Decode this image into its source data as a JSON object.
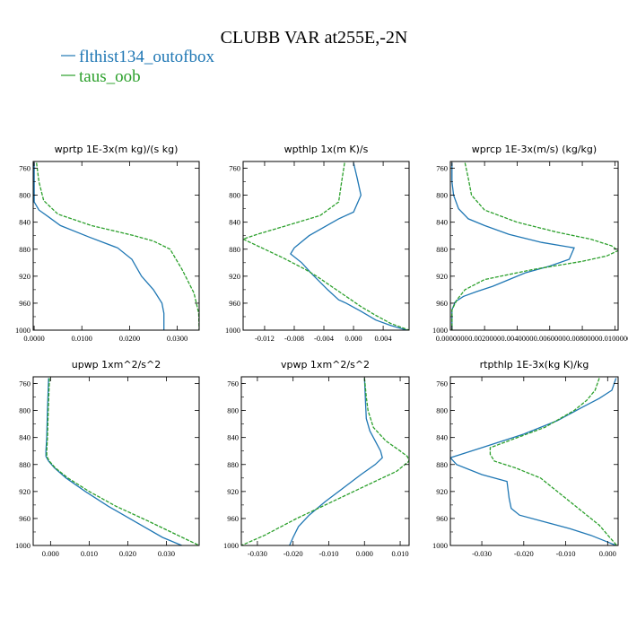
{
  "figure": {
    "title": "CLUBB VAR at255E,-2N",
    "legend": [
      {
        "label": "flthist134_outofbox",
        "color": "#1f77b4",
        "dash": false
      },
      {
        "label": "taus_oob",
        "color": "#2ca02c",
        "dash": true
      }
    ]
  },
  "chart_data": [
    {
      "type": "line",
      "title": "wprtp  1E-3x(m kg)/(s kg)",
      "xlim": [
        -0.0002,
        0.0346
      ],
      "xticks": [
        0.0,
        0.01,
        0.02,
        0.03
      ],
      "xticklabels": [
        "0.0000",
        "0.0100",
        "0.0200",
        "0.0300"
      ],
      "ylim": [
        1000,
        750
      ],
      "yticks": [
        760,
        800,
        840,
        880,
        920,
        960,
        1000
      ],
      "series": [
        {
          "name": "flthist134_outofbox",
          "x": [
            0.0,
            0.0,
            0.0,
            0.001,
            0.003,
            0.0055,
            0.0115,
            0.0175,
            0.0205,
            0.0225,
            0.025,
            0.0268,
            0.0272,
            0.0272
          ],
          "y": [
            752,
            780,
            810,
            822,
            832,
            845,
            862,
            878,
            895,
            920,
            940,
            960,
            975,
            1000
          ]
        },
        {
          "name": "taus_oob",
          "x": [
            0.0005,
            0.001,
            0.002,
            0.005,
            0.012,
            0.021,
            0.025,
            0.0285,
            0.031,
            0.0335,
            0.0345,
            0.0346
          ],
          "y": [
            752,
            780,
            808,
            828,
            845,
            860,
            868,
            880,
            910,
            945,
            975,
            1000
          ]
        }
      ]
    },
    {
      "type": "line",
      "title": "wpthlp  1x(m K)/s",
      "xlim": [
        -0.0149,
        0.0075
      ],
      "xticks": [
        -0.012,
        -0.008,
        -0.004,
        0.0,
        0.004
      ],
      "xticklabels": [
        "-0.012",
        "-0.008",
        "-0.004",
        "0.000",
        "0.004"
      ],
      "ylim": [
        1000,
        750
      ],
      "yticks": [
        760,
        800,
        840,
        880,
        920,
        960,
        1000
      ],
      "series": [
        {
          "name": "flthist134_outofbox",
          "x": [
            0.0,
            0.0005,
            0.001,
            0.0,
            -0.002,
            -0.006,
            -0.008,
            -0.0085,
            -0.007,
            -0.0055,
            -0.0035,
            -0.002,
            -0.001,
            0.001,
            0.003,
            0.005,
            0.0072
          ],
          "y": [
            752,
            775,
            800,
            825,
            835,
            860,
            878,
            887,
            900,
            918,
            940,
            955,
            960,
            972,
            985,
            993,
            1000
          ]
        },
        {
          "name": "taus_oob",
          "x": [
            -0.0012,
            -0.0016,
            -0.002,
            -0.0045,
            -0.009,
            -0.013,
            -0.0149,
            -0.012,
            -0.0095,
            -0.0065,
            -0.005,
            -0.003,
            -0.001,
            0.001,
            0.003,
            0.005,
            0.0075
          ],
          "y": [
            752,
            780,
            810,
            830,
            845,
            858,
            865,
            880,
            893,
            910,
            920,
            935,
            950,
            965,
            978,
            990,
            1000
          ]
        }
      ]
    },
    {
      "type": "line",
      "title": "wprcp  1E-3x(m/s) (kg/kg)",
      "xlim": [
        -0.0001,
        0.0102
      ],
      "xticks": [
        0.0,
        0.002,
        0.004,
        0.006,
        0.008,
        0.01
      ],
      "xticklabels": [
        "0.0000000",
        "0.0020000",
        "0.0040000",
        "0.0060000",
        "0.0080000",
        "0.0100000"
      ],
      "ylim": [
        1000,
        750
      ],
      "yticks": [
        760,
        800,
        840,
        880,
        920,
        960,
        1000
      ],
      "series": [
        {
          "name": "flthist134_outofbox",
          "x": [
            0.0,
            0.0,
            0.0001,
            0.0004,
            0.001,
            0.002,
            0.0035,
            0.0055,
            0.0075,
            0.0072,
            0.006,
            0.0045,
            0.0035,
            0.0025,
            0.0015,
            0.0007,
            0.0002,
            0.0,
            0.0
          ],
          "y": [
            752,
            780,
            800,
            820,
            835,
            845,
            858,
            870,
            878,
            895,
            905,
            915,
            925,
            935,
            943,
            950,
            958,
            970,
            1000
          ]
        },
        {
          "name": "taus_oob",
          "x": [
            0.0008,
            0.001,
            0.0012,
            0.002,
            0.004,
            0.0065,
            0.0085,
            0.0098,
            0.0102,
            0.0095,
            0.008,
            0.005,
            0.002,
            0.0008,
            0.0003,
            0.0,
            0.0
          ],
          "y": [
            752,
            775,
            800,
            822,
            840,
            855,
            865,
            875,
            882,
            890,
            898,
            910,
            925,
            940,
            955,
            970,
            1000
          ]
        }
      ]
    },
    {
      "type": "line",
      "title": "upwp  1xm^2/s^2",
      "xlim": [
        -0.0045,
        0.0385
      ],
      "xticks": [
        0.0,
        0.01,
        0.02,
        0.03
      ],
      "xticklabels": [
        "0.000",
        "0.010",
        "0.020",
        "0.030"
      ],
      "ylim": [
        1000,
        750
      ],
      "yticks": [
        760,
        800,
        840,
        880,
        920,
        960,
        1000
      ],
      "series": [
        {
          "name": "flthist134_outofbox",
          "x": [
            -0.0005,
            -0.0008,
            -0.001,
            -0.0012,
            -0.0012,
            -0.0005,
            0.001,
            0.004,
            0.009,
            0.015,
            0.022,
            0.029,
            0.034
          ],
          "y": [
            752,
            800,
            840,
            860,
            868,
            875,
            885,
            900,
            920,
            942,
            965,
            988,
            1000
          ]
        },
        {
          "name": "taus_oob",
          "x": [
            -0.0003,
            -0.0006,
            -0.0008,
            -0.001,
            -0.001,
            -0.0003,
            0.0012,
            0.0045,
            0.01,
            0.017,
            0.025,
            0.033,
            0.0385
          ],
          "y": [
            752,
            800,
            840,
            860,
            868,
            875,
            885,
            900,
            920,
            942,
            963,
            985,
            1000
          ]
        }
      ]
    },
    {
      "type": "line",
      "title": "vpwp  1xm^2/s^2",
      "xlim": [
        -0.0345,
        0.0125
      ],
      "xticks": [
        -0.03,
        -0.02,
        -0.01,
        0.0,
        0.01
      ],
      "xticklabels": [
        "-0.030",
        "-0.020",
        "-0.010",
        "0.000",
        "0.010"
      ],
      "ylim": [
        1000,
        750
      ],
      "yticks": [
        760,
        800,
        840,
        880,
        920,
        960,
        1000
      ],
      "series": [
        {
          "name": "flthist134_outofbox",
          "x": [
            0.0,
            0.0003,
            0.0005,
            0.0015,
            0.003,
            0.0045,
            0.005,
            0.003,
            -0.001,
            -0.006,
            -0.011,
            -0.0155,
            -0.0185,
            -0.02,
            -0.021
          ],
          "y": [
            752,
            790,
            812,
            830,
            845,
            860,
            870,
            880,
            895,
            915,
            935,
            955,
            972,
            988,
            1000
          ]
        },
        {
          "name": "taus_oob",
          "x": [
            0.0,
            0.0005,
            0.001,
            0.0025,
            0.006,
            0.01,
            0.012,
            0.0125,
            0.009,
            0.001,
            -0.009,
            -0.019,
            -0.028,
            -0.0345
          ],
          "y": [
            752,
            780,
            800,
            825,
            845,
            860,
            868,
            875,
            890,
            910,
            935,
            960,
            985,
            1000
          ]
        }
      ]
    },
    {
      "type": "line",
      "title": "rtpthlp  1E-3x(kg K)/kg",
      "xlim": [
        -0.0375,
        0.0025
      ],
      "xticks": [
        -0.03,
        -0.02,
        -0.01,
        0.0
      ],
      "xticklabels": [
        "-0.030",
        "-0.020",
        "-0.010",
        "0.000"
      ],
      "ylim": [
        1000,
        750
      ],
      "yticks": [
        760,
        800,
        840,
        880,
        920,
        960,
        1000
      ],
      "series": [
        {
          "name": "flthist134_outofbox",
          "x": [
            0.002,
            0.001,
            -0.002,
            -0.006,
            -0.012,
            -0.02,
            -0.03,
            -0.0375,
            -0.036,
            -0.03,
            -0.024,
            -0.0235,
            -0.023,
            -0.021,
            -0.015,
            -0.009,
            -0.004,
            0.0,
            0.002
          ],
          "y": [
            752,
            770,
            782,
            795,
            815,
            835,
            855,
            870,
            880,
            895,
            905,
            930,
            945,
            955,
            965,
            975,
            985,
            995,
            1000
          ]
        },
        {
          "name": "taus_oob",
          "x": [
            -0.002,
            -0.003,
            -0.005,
            -0.008,
            -0.015,
            -0.028,
            -0.028,
            -0.027,
            -0.022,
            -0.016,
            -0.011,
            -0.006,
            -0.002,
            0.0005,
            0.0022
          ],
          "y": [
            752,
            770,
            785,
            800,
            825,
            855,
            865,
            875,
            885,
            900,
            925,
            950,
            970,
            988,
            1000
          ]
        }
      ]
    }
  ]
}
